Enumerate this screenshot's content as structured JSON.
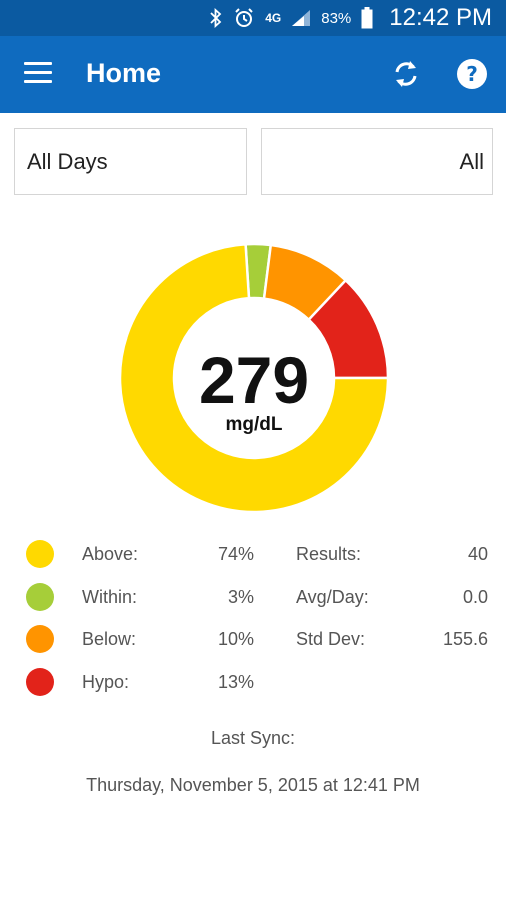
{
  "status_bar": {
    "network": "4G",
    "battery": "83%",
    "time": "12:42 PM"
  },
  "app_bar": {
    "title": "Home"
  },
  "filters": {
    "days": "All Days",
    "type": "All"
  },
  "chart_data": {
    "type": "pie",
    "categories": [
      "Above",
      "Within",
      "Below",
      "Hypo"
    ],
    "values": [
      74,
      3,
      10,
      13
    ],
    "colors": [
      "#ffd900",
      "#a6ce39",
      "#ff9400",
      "#e2231a"
    ],
    "center_value": "279",
    "center_unit": "mg/dL"
  },
  "legend": [
    {
      "label": "Above:",
      "pct": "74%",
      "color": "#ffd900"
    },
    {
      "label": "Within:",
      "pct": "3%",
      "color": "#a6ce39"
    },
    {
      "label": "Below:",
      "pct": "10%",
      "color": "#ff9400"
    },
    {
      "label": "Hypo:",
      "pct": "13%",
      "color": "#e2231a"
    }
  ],
  "stats": [
    {
      "label": "Results:",
      "value": "40"
    },
    {
      "label": "Avg/Day:",
      "value": "0.0"
    },
    {
      "label": "Std Dev:",
      "value": "155.6"
    }
  ],
  "sync": {
    "label": "Last Sync:",
    "date": "Thursday, November 5, 2015 at 12:41 PM"
  }
}
